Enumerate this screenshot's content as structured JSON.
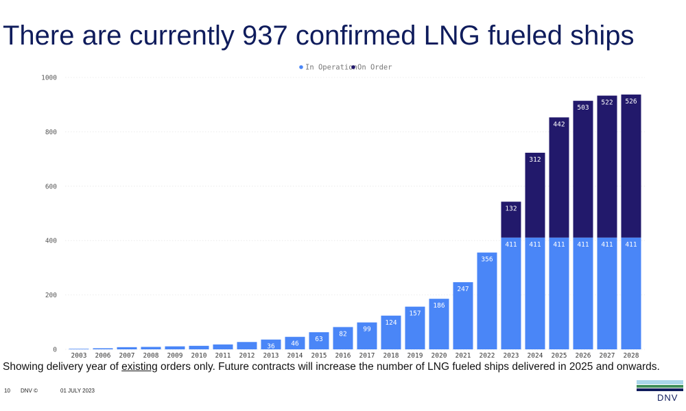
{
  "slide": {
    "title": "There are currently 937 confirmed LNG fueled ships",
    "footnote_before": "Showing delivery year of ",
    "footnote_underlined": "existing",
    "footnote_after": " orders only. Future contracts will increase the number of LNG fueled ships delivered in 2025 and onwards.",
    "footer": {
      "page": "10",
      "brand": "DNV ©",
      "date": "01 JULY 2023"
    },
    "logo_text": "DNV"
  },
  "chart_data": {
    "type": "bar",
    "stacked": true,
    "categories": [
      "2003",
      "2006",
      "2007",
      "2008",
      "2009",
      "2010",
      "2011",
      "2012",
      "2013",
      "2014",
      "2015",
      "2016",
      "2017",
      "2018",
      "2019",
      "2020",
      "2021",
      "2022",
      "2023",
      "2024",
      "2025",
      "2026",
      "2027",
      "2028"
    ],
    "series": [
      {
        "name": "In Operation",
        "color": "#4a86f7",
        "values": [
          2,
          4,
          8,
          9,
          11,
          13,
          18,
          27,
          36,
          46,
          63,
          82,
          99,
          124,
          157,
          186,
          247,
          356,
          411,
          411,
          411,
          411,
          411,
          411
        ],
        "labels_shown_from_index": 8
      },
      {
        "name": "On Order",
        "color": "#22196b",
        "values": [
          0,
          0,
          0,
          0,
          0,
          0,
          0,
          0,
          0,
          0,
          0,
          0,
          0,
          0,
          0,
          0,
          0,
          0,
          132,
          312,
          442,
          503,
          522,
          526
        ]
      }
    ],
    "ylim": [
      0,
      1000
    ],
    "yticks": [
      0,
      200,
      400,
      600,
      800,
      1000
    ],
    "grid": true,
    "legend": "top-center"
  }
}
